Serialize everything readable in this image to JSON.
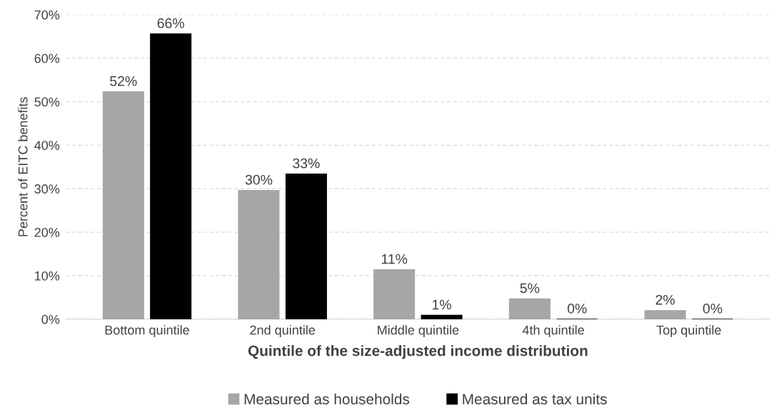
{
  "chart_data": {
    "type": "bar",
    "categories": [
      "Bottom quintile",
      "2nd quintile",
      "Middle quintile",
      "4th quintile",
      "Top quintile"
    ],
    "xlabel": "Quintile of the size-adjusted income distribution",
    "ylabel": "Percent of EITC benefits",
    "series": [
      {
        "name": "Measured as households",
        "color": "#a6a6a6",
        "values": [
          52.3,
          29.6,
          11.4,
          4.7,
          2.0
        ],
        "value_labels": [
          "52%",
          "30%",
          "11%",
          "5%",
          "2%"
        ]
      },
      {
        "name": "Measured as tax units",
        "color": "#000000",
        "values": [
          65.6,
          33.4,
          0.9,
          0,
          0
        ],
        "value_labels": [
          "66%",
          "33%",
          "1%",
          "0%",
          "0%"
        ]
      }
    ],
    "ylim": [
      0,
      70
    ],
    "yticks": [
      {
        "value": 0,
        "label": "0%"
      },
      {
        "value": 10,
        "label": "10%"
      },
      {
        "value": 20,
        "label": "20%"
      },
      {
        "value": 30,
        "label": "30%"
      },
      {
        "value": 40,
        "label": "40%"
      },
      {
        "value": 50,
        "label": "50%"
      },
      {
        "value": 60,
        "label": "60%"
      },
      {
        "value": 70,
        "label": "70%"
      }
    ],
    "grid": "y",
    "legend": "bottom"
  }
}
